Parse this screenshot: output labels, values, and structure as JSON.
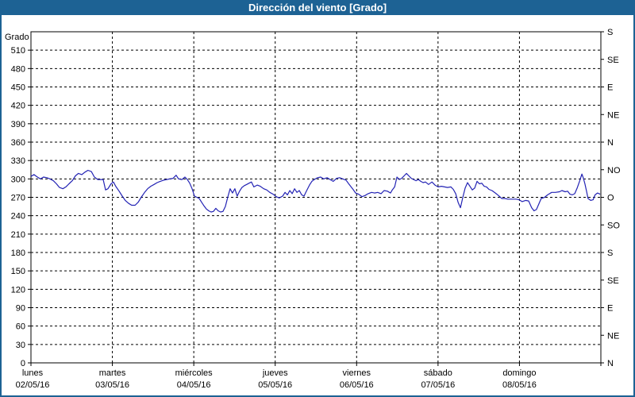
{
  "window": {
    "title": "Dirección del viento [Grado]"
  },
  "colors": {
    "titlebar_bg": "#1d6294",
    "window_border": "#1d6294",
    "plot_bg": "#ffffff",
    "grid": "#000000",
    "axis_text": "#000000",
    "series_line": "#2323b4"
  },
  "chart_data": {
    "type": "line",
    "title": "Dirección del viento [Grado]",
    "ylabel": "Grado",
    "xlabel": "",
    "grid": "dashed",
    "legend_position": "none",
    "y_axis_left": {
      "title": "Grado",
      "min": 0,
      "max": 540,
      "tick_step": 30,
      "ticks": [
        0,
        30,
        60,
        90,
        120,
        150,
        180,
        210,
        240,
        270,
        300,
        330,
        360,
        390,
        420,
        450,
        480,
        510
      ]
    },
    "y_axis_right": {
      "tick_step_degrees": 45,
      "ticks": [
        {
          "value": 0,
          "label": "N"
        },
        {
          "value": 45,
          "label": "NE"
        },
        {
          "value": 90,
          "label": "E"
        },
        {
          "value": 135,
          "label": "SE"
        },
        {
          "value": 180,
          "label": "S"
        },
        {
          "value": 225,
          "label": "SO"
        },
        {
          "value": 270,
          "label": "O"
        },
        {
          "value": 315,
          "label": "NO"
        },
        {
          "value": 360,
          "label": "N"
        },
        {
          "value": 405,
          "label": "NE"
        },
        {
          "value": 450,
          "label": "E"
        },
        {
          "value": 495,
          "label": "SE"
        },
        {
          "value": 540,
          "label": "S"
        }
      ]
    },
    "x_axis": {
      "hours_total": 168,
      "day_width_hours": 24,
      "days": [
        {
          "name": "lunes",
          "date": "02/05/16"
        },
        {
          "name": "martes",
          "date": "03/05/16"
        },
        {
          "name": "miércoles",
          "date": "04/05/16"
        },
        {
          "name": "jueves",
          "date": "05/05/16"
        },
        {
          "name": "viernes",
          "date": "06/05/16"
        },
        {
          "name": "sábado",
          "date": "07/05/16"
        },
        {
          "name": "domingo",
          "date": "08/05/16"
        }
      ]
    },
    "series": [
      {
        "name": "Dirección del viento",
        "unit": "Grado",
        "color": "#2323b4",
        "points": [
          [
            0.0,
            304
          ],
          [
            0.9,
            307
          ],
          [
            1.9,
            303
          ],
          [
            2.8,
            300
          ],
          [
            3.7,
            303
          ],
          [
            4.7,
            302
          ],
          [
            5.6,
            300
          ],
          [
            6.6,
            297
          ],
          [
            7.5,
            292
          ],
          [
            8.4,
            286
          ],
          [
            9.4,
            284
          ],
          [
            10.3,
            287
          ],
          [
            11.2,
            292
          ],
          [
            12.2,
            297
          ],
          [
            13.1,
            305
          ],
          [
            14.0,
            309
          ],
          [
            15.0,
            307
          ],
          [
            15.9,
            311
          ],
          [
            16.8,
            314
          ],
          [
            17.8,
            312
          ],
          [
            18.7,
            303
          ],
          [
            19.7,
            299
          ],
          [
            20.6,
            299
          ],
          [
            21.3,
            299
          ],
          [
            22.0,
            282
          ],
          [
            22.7,
            284
          ],
          [
            23.6,
            292
          ],
          [
            24.3,
            295
          ],
          [
            25.0,
            288
          ],
          [
            26.0,
            280
          ],
          [
            26.9,
            272
          ],
          [
            27.8,
            265
          ],
          [
            28.8,
            260
          ],
          [
            29.7,
            257
          ],
          [
            30.7,
            257
          ],
          [
            31.6,
            262
          ],
          [
            32.5,
            270
          ],
          [
            33.5,
            278
          ],
          [
            34.4,
            284
          ],
          [
            35.3,
            288
          ],
          [
            36.3,
            291
          ],
          [
            37.2,
            294
          ],
          [
            38.1,
            296
          ],
          [
            39.1,
            298
          ],
          [
            40.0,
            299
          ],
          [
            40.9,
            300
          ],
          [
            41.9,
            301
          ],
          [
            42.8,
            306
          ],
          [
            43.5,
            300
          ],
          [
            44.5,
            299
          ],
          [
            45.4,
            303
          ],
          [
            46.1,
            299
          ],
          [
            46.8,
            293
          ],
          [
            47.5,
            284
          ],
          [
            48.2,
            272
          ],
          [
            48.9,
            270
          ],
          [
            49.6,
            268
          ],
          [
            50.3,
            262
          ],
          [
            51.0,
            256
          ],
          [
            51.7,
            251
          ],
          [
            52.4,
            248
          ],
          [
            53.1,
            246
          ],
          [
            53.8,
            247
          ],
          [
            54.5,
            252
          ],
          [
            55.2,
            248
          ],
          [
            55.9,
            246
          ],
          [
            56.6,
            247
          ],
          [
            57.3,
            255
          ],
          [
            58.0,
            270
          ],
          [
            58.7,
            284
          ],
          [
            59.4,
            277
          ],
          [
            60.1,
            284
          ],
          [
            60.8,
            272
          ],
          [
            61.5,
            280
          ],
          [
            62.2,
            286
          ],
          [
            62.9,
            289
          ],
          [
            63.6,
            291
          ],
          [
            64.3,
            293
          ],
          [
            65.0,
            295
          ],
          [
            65.7,
            287
          ],
          [
            66.7,
            290
          ],
          [
            67.6,
            288
          ],
          [
            68.6,
            284
          ],
          [
            69.5,
            282
          ],
          [
            70.4,
            278
          ],
          [
            71.4,
            275
          ],
          [
            72.3,
            271
          ],
          [
            73.2,
            269
          ],
          [
            74.2,
            272
          ],
          [
            74.9,
            278
          ],
          [
            75.6,
            274
          ],
          [
            76.3,
            281
          ],
          [
            77.0,
            276
          ],
          [
            77.7,
            284
          ],
          [
            78.4,
            278
          ],
          [
            79.1,
            281
          ],
          [
            79.8,
            274
          ],
          [
            80.5,
            272
          ],
          [
            81.2,
            280
          ],
          [
            82.1,
            290
          ],
          [
            82.8,
            296
          ],
          [
            83.5,
            299
          ],
          [
            84.5,
            302
          ],
          [
            85.4,
            303
          ],
          [
            86.3,
            300
          ],
          [
            87.3,
            302
          ],
          [
            88.2,
            299
          ],
          [
            89.1,
            296
          ],
          [
            90.1,
            301
          ],
          [
            91.0,
            302
          ],
          [
            91.9,
            300
          ],
          [
            92.9,
            298
          ],
          [
            93.8,
            291
          ],
          [
            94.8,
            284
          ],
          [
            95.7,
            277
          ],
          [
            96.6,
            275
          ],
          [
            97.6,
            271
          ],
          [
            98.5,
            273
          ],
          [
            99.4,
            276
          ],
          [
            100.4,
            278
          ],
          [
            101.3,
            277
          ],
          [
            102.2,
            278
          ],
          [
            103.2,
            276
          ],
          [
            104.1,
            281
          ],
          [
            105.1,
            280
          ],
          [
            106.0,
            277
          ],
          [
            106.5,
            282
          ],
          [
            107.2,
            287
          ],
          [
            107.9,
            303
          ],
          [
            108.6,
            299
          ],
          [
            109.3,
            301
          ],
          [
            110.0,
            305
          ],
          [
            110.7,
            309
          ],
          [
            111.4,
            305
          ],
          [
            112.1,
            301
          ],
          [
            112.8,
            299
          ],
          [
            113.5,
            297
          ],
          [
            114.2,
            299
          ],
          [
            114.9,
            296
          ],
          [
            115.6,
            294
          ],
          [
            116.3,
            295
          ],
          [
            117.2,
            291
          ],
          [
            118.2,
            295
          ],
          [
            119.1,
            290
          ],
          [
            120.0,
            287
          ],
          [
            121.0,
            288
          ],
          [
            121.9,
            287
          ],
          [
            122.8,
            286
          ],
          [
            123.8,
            287
          ],
          [
            124.5,
            283
          ],
          [
            125.2,
            276
          ],
          [
            125.9,
            262
          ],
          [
            126.6,
            253
          ],
          [
            127.3,
            270
          ],
          [
            128.0,
            285
          ],
          [
            128.7,
            294
          ],
          [
            129.4,
            288
          ],
          [
            130.1,
            282
          ],
          [
            130.8,
            285
          ],
          [
            131.5,
            296
          ],
          [
            132.2,
            292
          ],
          [
            132.9,
            293
          ],
          [
            133.6,
            288
          ],
          [
            134.3,
            287
          ],
          [
            135.0,
            283
          ],
          [
            135.9,
            281
          ],
          [
            136.9,
            277
          ],
          [
            137.8,
            273
          ],
          [
            138.8,
            268
          ],
          [
            139.7,
            268
          ],
          [
            140.6,
            267
          ],
          [
            141.8,
            267
          ],
          [
            143.0,
            267
          ],
          [
            143.9,
            266
          ],
          [
            144.8,
            263
          ],
          [
            145.8,
            265
          ],
          [
            146.7,
            264
          ],
          [
            147.6,
            253
          ],
          [
            148.3,
            248
          ],
          [
            149.0,
            250
          ],
          [
            149.7,
            259
          ],
          [
            150.4,
            268
          ],
          [
            151.4,
            270
          ],
          [
            152.3,
            274
          ],
          [
            153.5,
            278
          ],
          [
            154.6,
            278
          ],
          [
            155.8,
            279
          ],
          [
            156.5,
            281
          ],
          [
            157.5,
            279
          ],
          [
            158.2,
            280
          ],
          [
            158.9,
            275
          ],
          [
            159.6,
            274
          ],
          [
            160.3,
            276
          ],
          [
            161.0,
            285
          ],
          [
            161.7,
            296
          ],
          [
            162.4,
            308
          ],
          [
            162.8,
            302
          ],
          [
            163.3,
            292
          ],
          [
            163.8,
            279
          ],
          [
            164.2,
            268
          ],
          [
            165.0,
            265
          ],
          [
            165.7,
            266
          ],
          [
            166.3,
            274
          ],
          [
            167.0,
            277
          ],
          [
            167.8,
            275
          ]
        ]
      }
    ]
  }
}
